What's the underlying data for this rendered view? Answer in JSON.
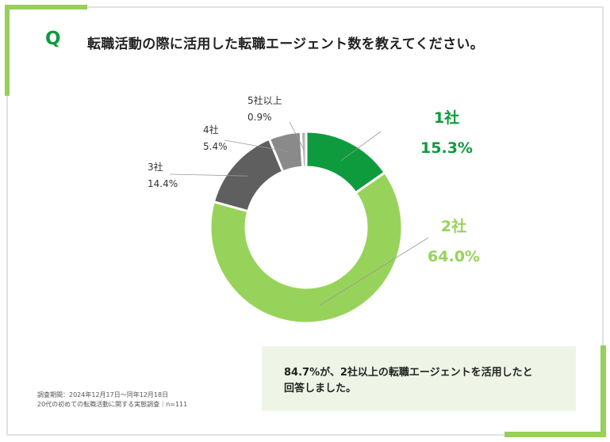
{
  "question": {
    "mark": "Q",
    "text": "転職活動の際に活用した転職エージェント数を教えてください。"
  },
  "chart_data": {
    "type": "pie",
    "subtype": "donut",
    "title": "転職活動の際に活用した転職エージェント数を教えてください。",
    "categories": [
      "1社",
      "2社",
      "3社",
      "4社",
      "5社以上"
    ],
    "values": [
      15.3,
      64.0,
      14.4,
      5.4,
      0.9
    ],
    "labels": [
      "15.3%",
      "64.0%",
      "14.4%",
      "5.4%",
      "0.9%"
    ],
    "colors": [
      "#0e9b3d",
      "#97d35a",
      "#5f5f5f",
      "#8a8a8a",
      "#b5b5b5"
    ]
  },
  "summary": {
    "line1": "84.7%が、2社以上の転職エージェントを活用したと",
    "line2": "回答しました。"
  },
  "source": {
    "line1": "調査期間：2024年12月17日〜同年12月18日",
    "line2": "20代の初めての転職活動に関する実態調査｜n=111"
  }
}
